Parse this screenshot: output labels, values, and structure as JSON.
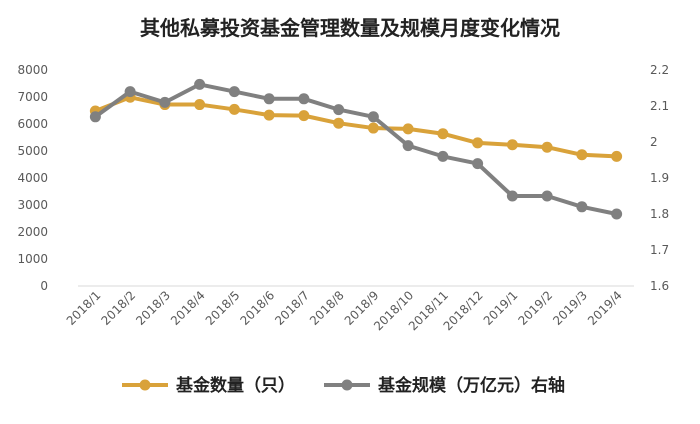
{
  "chart_data": {
    "type": "line",
    "title": "其他私募投资基金管理数量及规模月度变化情况",
    "categories": [
      "2018/1",
      "2018/2",
      "2018/3",
      "2018/4",
      "2018/5",
      "2018/6",
      "2018/7",
      "2018/8",
      "2018/9",
      "2018/10",
      "2018/11",
      "2018/12",
      "2019/1",
      "2019/2",
      "2019/3",
      "2019/4"
    ],
    "left_axis": {
      "min": 0,
      "max": 8000,
      "ticks": [
        "0",
        "1000",
        "2000",
        "3000",
        "4000",
        "5000",
        "6000",
        "7000",
        "8000"
      ]
    },
    "right_axis": {
      "min": 1.6,
      "max": 2.2,
      "ticks": [
        "1.6",
        "1.7",
        "1.8",
        "1.9",
        "2",
        "2.1",
        "2.2"
      ]
    },
    "series": [
      {
        "name": "基金数量（只）",
        "axis": "left",
        "color": "#D9A23A",
        "values": [
          6480,
          6990,
          6720,
          6720,
          6540,
          6330,
          6310,
          6030,
          5850,
          5820,
          5640,
          5300,
          5230,
          5140,
          4860,
          4800
        ]
      },
      {
        "name": "基金规模（万亿元）右轴",
        "axis": "right",
        "color": "#808080",
        "values": [
          2.07,
          2.14,
          2.11,
          2.16,
          2.14,
          2.12,
          2.12,
          2.09,
          2.07,
          1.99,
          1.96,
          1.94,
          1.85,
          1.85,
          1.82,
          1.8
        ]
      }
    ],
    "legend_position": "bottom",
    "grid": false
  }
}
